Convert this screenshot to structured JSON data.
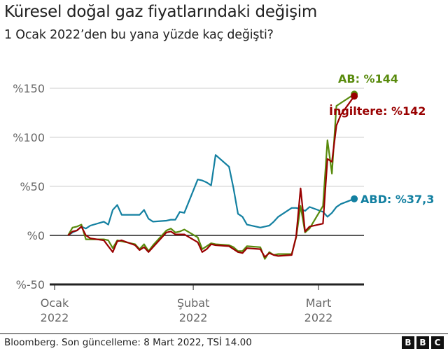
{
  "header": {
    "title": "Küresel doğal gaz fiyatlarındaki değişim",
    "subtitle": "1 Ocak 2022’den bu yana yüzde kaç değişti?"
  },
  "footer": {
    "source": "Bloomberg. Son güncelleme: 8 Mart 2022, TSİ 14.00",
    "logo_letters": [
      "B",
      "B",
      "C"
    ]
  },
  "colors": {
    "ab": "#588a0c",
    "uk": "#990000",
    "us": "#1380a1",
    "grid": "#cccccc",
    "axis": "#222222"
  },
  "chart_data": {
    "type": "line",
    "title": "Küresel doğal gaz fiyatlarındaki değişim",
    "subtitle": "1 Ocak 2022’den bu yana yüzde kaç değişti?",
    "xlabel": "",
    "ylabel": "",
    "yticks": [
      "%150",
      "%100",
      "%50",
      "%0",
      "%-50"
    ],
    "ytick_values": [
      150,
      100,
      50,
      0,
      -50
    ],
    "ylim": [
      -50,
      155
    ],
    "xticks": [
      {
        "line1": "Ocak",
        "line2": "2022"
      },
      {
        "line1": "Şubat",
        "line2": "2022"
      },
      {
        "line1": "Mart",
        "line2": "2022"
      }
    ],
    "grid": true,
    "x_note": "x values are day offsets from 1 January 2022 (Ocak 1 = 0, Şubat 1 = 31, Mart 1 = 59)",
    "x": [
      3,
      4,
      5,
      6,
      7,
      8,
      11,
      12,
      13,
      14,
      15,
      18,
      19,
      20,
      21,
      22,
      25,
      26,
      27,
      28,
      29,
      32,
      33,
      34,
      35,
      36,
      39,
      40,
      41,
      42,
      43,
      46,
      47,
      48,
      49,
      50,
      53,
      54,
      55,
      56,
      57,
      60,
      61,
      62,
      63,
      64,
      67
    ],
    "series": [
      {
        "name": "AB",
        "label": "AB: %144",
        "final": 144,
        "values": [
          0,
          8,
          9,
          11,
          -4,
          -4,
          -4,
          -5,
          -13,
          -5,
          -6,
          -9,
          -14,
          -9,
          -16,
          -10,
          5,
          7,
          3,
          4,
          6,
          -2,
          -14,
          -11,
          -8,
          -9,
          -10,
          -12,
          -16,
          -16,
          -11,
          -12,
          -24,
          -17,
          -20,
          -19,
          -19,
          -2,
          30,
          3,
          7,
          30,
          97,
          63,
          132,
          135,
          144
        ]
      },
      {
        "name": "İngiltere",
        "label": "İngiltere: %142",
        "final": 142,
        "values": [
          0,
          4,
          5,
          9,
          0,
          -3,
          -5,
          -11,
          -17,
          -6,
          -5,
          -10,
          -15,
          -12,
          -17,
          -12,
          3,
          4,
          1,
          1,
          1,
          -7,
          -17,
          -14,
          -9,
          -10,
          -11,
          -14,
          -17,
          -18,
          -13,
          -14,
          -22,
          -18,
          -20,
          -21,
          -20,
          -1,
          48,
          4,
          9,
          12,
          78,
          75,
          112,
          123,
          142
        ]
      },
      {
        "name": "ABD",
        "label": "ABD: %37,3",
        "final": 37.3,
        "values": [
          0,
          3,
          5,
          9,
          7,
          10,
          14,
          11,
          26,
          31,
          21,
          21,
          21,
          26,
          17,
          14,
          15,
          16,
          16,
          24,
          23,
          57,
          56,
          54,
          51,
          82,
          70,
          48,
          22,
          19,
          11,
          8,
          9,
          10,
          14,
          19,
          28,
          28,
          27,
          25,
          29,
          24,
          19,
          23,
          29,
          32,
          37.3
        ]
      }
    ]
  }
}
